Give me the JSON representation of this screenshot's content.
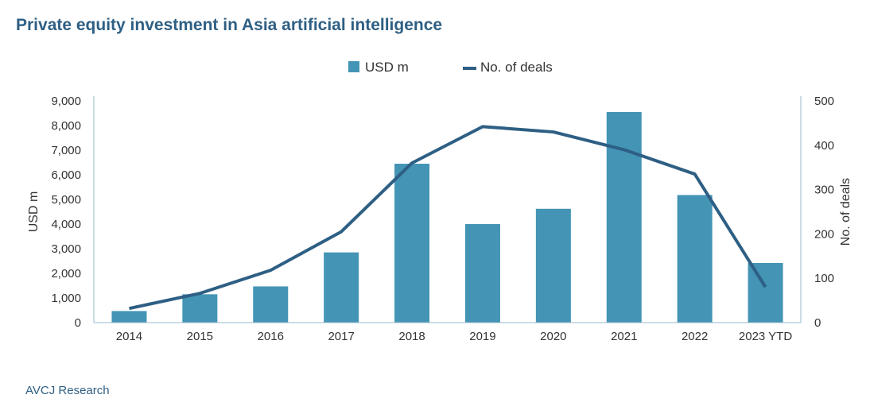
{
  "title": "Private equity investment in Asia artificial intelligence",
  "source": "AVCJ Research",
  "chart_data": {
    "type": "bar",
    "categories": [
      "2014",
      "2015",
      "2016",
      "2017",
      "2018",
      "2019",
      "2020",
      "2021",
      "2022",
      "2023 YTD"
    ],
    "series": [
      {
        "name": "USD m",
        "type": "bar",
        "axis": "left",
        "color": "#4394b5",
        "values": [
          470,
          1150,
          1470,
          2850,
          6450,
          4000,
          4620,
          8550,
          5180,
          2420
        ]
      },
      {
        "name": "No. of deals",
        "type": "line",
        "axis": "right",
        "color": "#2e5f84",
        "values": [
          32,
          66,
          118,
          205,
          360,
          442,
          430,
          390,
          335,
          80
        ]
      }
    ],
    "ylabel": "USD m",
    "y2label": "No. of deals",
    "ylim": [
      0,
      9000
    ],
    "y2lim": [
      0,
      500
    ],
    "yticks": [
      "0",
      "1,000",
      "2,000",
      "3,000",
      "4,000",
      "5,000",
      "6,000",
      "7,000",
      "8,000",
      "9,000"
    ],
    "y2ticks": [
      "0",
      "100",
      "200",
      "300",
      "400",
      "500"
    ],
    "grid": false,
    "legend": "top-center"
  }
}
